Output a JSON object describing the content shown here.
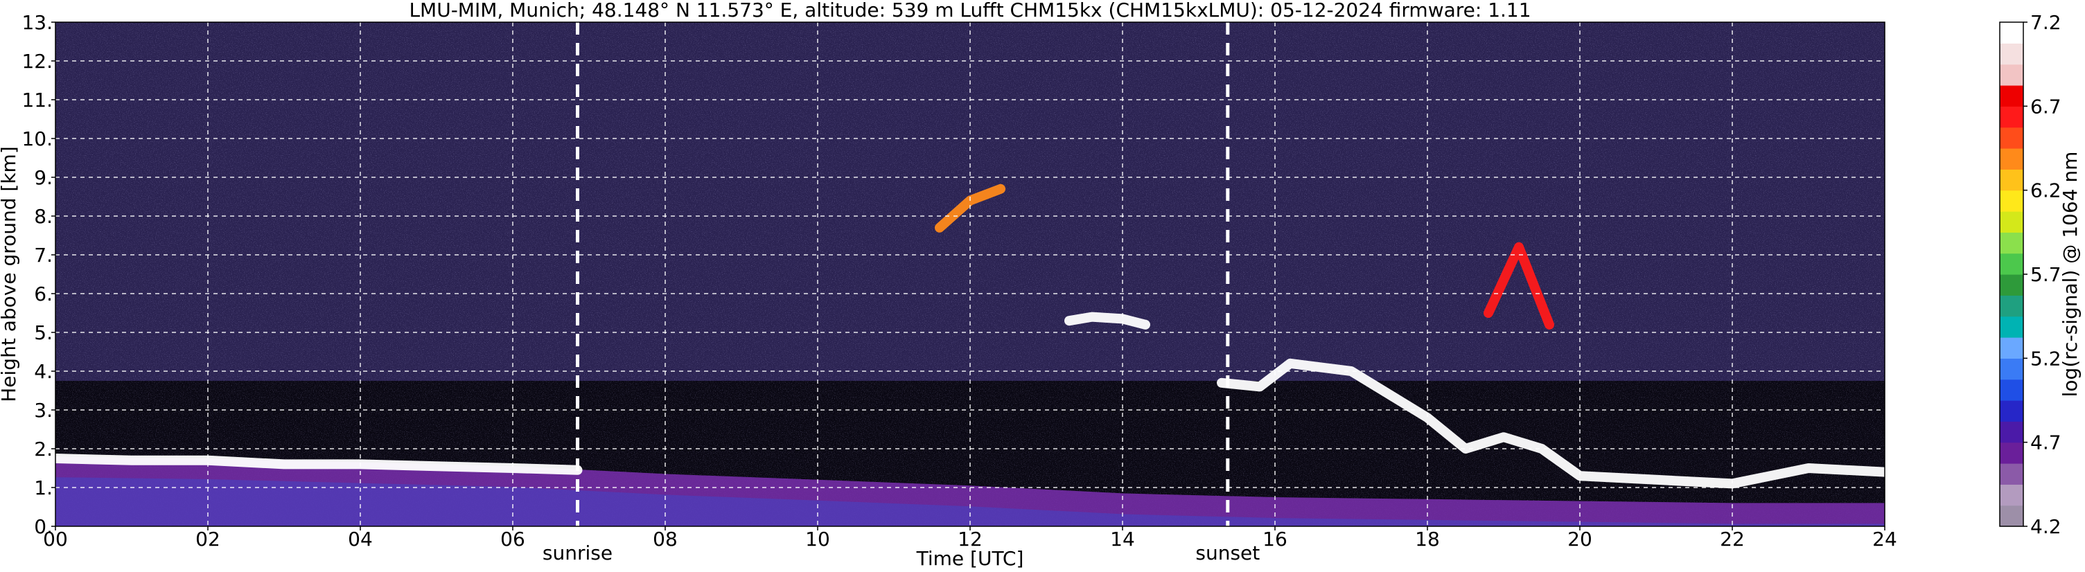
{
  "chart_data": {
    "type": "heatmap",
    "title": "LMU-MIM, Munich; 48.148° N 11.573° E, altitude: 539 m    Lufft CHM15kx (CHM15kxLMU): 05-12-2024    firmware: 1.11",
    "xlabel": "Time [UTC]",
    "ylabel": "Height above ground [km]",
    "colorbar_label": "log(rc-signal) @ 1064 nm",
    "xlim": [
      0,
      24
    ],
    "ylim": [
      0,
      13
    ],
    "x_tick_values": [
      0,
      2,
      4,
      6,
      8,
      10,
      12,
      14,
      16,
      18,
      20,
      22,
      24
    ],
    "x_tick_labels": [
      "00",
      "02",
      "04",
      "06",
      "08",
      "10",
      "12",
      "14",
      "16",
      "18",
      "20",
      "22",
      "24"
    ],
    "y_tick_values": [
      0,
      1,
      2,
      3,
      4,
      5,
      6,
      7,
      8,
      9,
      10,
      11,
      12,
      13
    ],
    "y_tick_labels": [
      "0.",
      "1.",
      "2.",
      "3.",
      "4.",
      "5.",
      "6.",
      "7.",
      "8.",
      "9.",
      "10.",
      "11.",
      "12.",
      "13."
    ],
    "colorbar_range": [
      4.2,
      7.2
    ],
    "colorbar_tick_values": [
      4.2,
      4.7,
      5.2,
      5.7,
      6.2,
      6.7,
      7.2
    ],
    "colorbar_tick_labels": [
      "4.2",
      "4.7",
      "5.2",
      "5.7",
      "6.2",
      "6.7",
      "7.2"
    ],
    "colorbar_colors": [
      "#9d8fa8",
      "#b39bbf",
      "#8b5aa8",
      "#6a1f9a",
      "#4b1aa8",
      "#2626c8",
      "#1f4fe6",
      "#3a7bf5",
      "#6aa8ff",
      "#00b3b3",
      "#1fa080",
      "#2e9a3a",
      "#4cc84c",
      "#8be04c",
      "#d4e81a",
      "#ffe81a",
      "#ffc21a",
      "#ff8a1a",
      "#ff4d1a",
      "#ff1a1a",
      "#ee0000",
      "#f2c4c4",
      "#f5e0e0",
      "#ffffff"
    ],
    "grid": true,
    "events": [
      {
        "label": "sunrise",
        "time": 6.85
      },
      {
        "label": "sunset",
        "time": 15.38
      }
    ],
    "features": [
      {
        "name": "boundary-layer",
        "color": "#7a2fb0",
        "points": [
          [
            0,
            1.8
          ],
          [
            2,
            1.75
          ],
          [
            4,
            1.65
          ],
          [
            6,
            1.55
          ],
          [
            8,
            1.35
          ],
          [
            10,
            1.2
          ],
          [
            12,
            1.05
          ],
          [
            14,
            0.85
          ],
          [
            16,
            0.75
          ],
          [
            18,
            0.7
          ],
          [
            20,
            0.65
          ],
          [
            22,
            0.6
          ],
          [
            24,
            0.6
          ]
        ]
      },
      {
        "name": "residual-layer-top",
        "color": "#ffffff",
        "points": [
          [
            0,
            1.75
          ],
          [
            1,
            1.7
          ],
          [
            2,
            1.7
          ],
          [
            3,
            1.6
          ],
          [
            4,
            1.6
          ],
          [
            5,
            1.55
          ],
          [
            6,
            1.5
          ],
          [
            6.85,
            1.45
          ]
        ]
      },
      {
        "name": "mid-cloud-13h",
        "color": "#ffffff",
        "points": [
          [
            13.3,
            5.3
          ],
          [
            13.6,
            5.4
          ],
          [
            14.0,
            5.35
          ],
          [
            14.3,
            5.2
          ]
        ]
      },
      {
        "name": "mid-cloud-15h",
        "color": "#ffffff",
        "points": [
          [
            15.3,
            3.7
          ],
          [
            15.8,
            3.6
          ],
          [
            16.2,
            4.2
          ],
          [
            17.0,
            4.0
          ],
          [
            18.0,
            2.8
          ],
          [
            18.5,
            2.0
          ],
          [
            19.0,
            2.3
          ],
          [
            19.5,
            2.0
          ],
          [
            20.0,
            1.3
          ],
          [
            21.0,
            1.2
          ],
          [
            22.0,
            1.1
          ],
          [
            23.0,
            1.5
          ],
          [
            24.0,
            1.4
          ]
        ]
      },
      {
        "name": "cirrus-12h",
        "color": "#ff8a1a",
        "points": [
          [
            11.6,
            7.7
          ],
          [
            12.0,
            8.4
          ],
          [
            12.4,
            8.7
          ]
        ]
      },
      {
        "name": "fall-streak-19h",
        "color": "#ff1a1a",
        "points": [
          [
            18.8,
            5.5
          ],
          [
            19.2,
            7.2
          ],
          [
            19.6,
            5.2
          ]
        ]
      }
    ]
  }
}
